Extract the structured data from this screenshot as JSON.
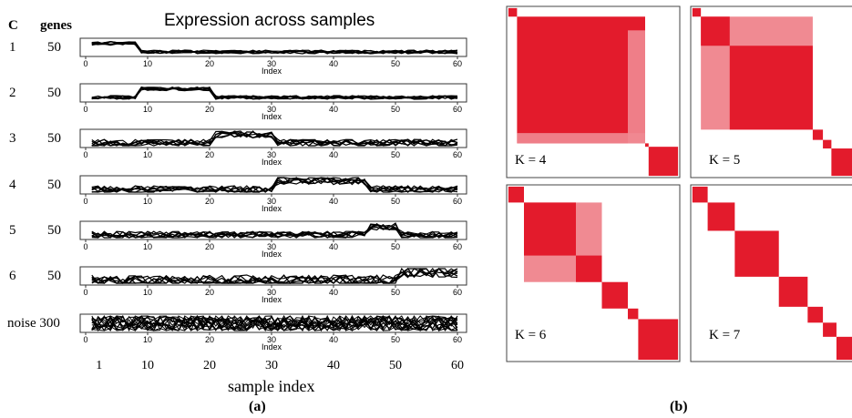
{
  "panel_a": {
    "title": "Expression across samples",
    "header_cluster": "C",
    "header_genes": "genes",
    "index_label": "Index",
    "xaxis_label": "sample index",
    "caption": "(a)",
    "inner_ticks": [
      "0",
      "10",
      "20",
      "30",
      "40",
      "50",
      "60"
    ],
    "bottom_ticks": [
      "1",
      "10",
      "20",
      "30",
      "40",
      "50",
      "60"
    ]
  },
  "panel_b": {
    "caption": "(b)"
  },
  "colors": {
    "block": "#e31b2c",
    "block_light": "#f08a92",
    "trace": "#000000",
    "frame": "#333333"
  },
  "chart_data": [
    {
      "type": "line",
      "title": "Expression across samples",
      "xlabel": "sample index",
      "x_range": [
        1,
        60
      ],
      "rows": [
        {
          "cluster": "1",
          "genes": "50",
          "high_range": [
            1,
            8
          ],
          "noise": "low"
        },
        {
          "cluster": "2",
          "genes": "50",
          "high_range": [
            9,
            20
          ],
          "noise": "low"
        },
        {
          "cluster": "3",
          "genes": "50",
          "high_range": [
            21,
            30
          ],
          "noise": "medium"
        },
        {
          "cluster": "4",
          "genes": "50",
          "high_range": [
            31,
            45
          ],
          "noise": "medium"
        },
        {
          "cluster": "5",
          "genes": "50",
          "high_range": [
            46,
            50
          ],
          "noise": "medium"
        },
        {
          "cluster": "6",
          "genes": "50",
          "high_range": [
            51,
            60
          ],
          "noise": "high"
        },
        {
          "cluster": "noise",
          "genes": "300",
          "high_range": null,
          "noise": "full"
        }
      ]
    },
    {
      "type": "heatmap",
      "matrices": [
        {
          "label": "K = 4",
          "blocks": [
            [
              0,
              1
            ],
            [
              1,
              9
            ],
            [
              9,
              10
            ],
            [
              10,
              11
            ]
          ],
          "merged": [
            [
              8.5,
              9
            ]
          ]
        },
        {
          "label": "K = 5",
          "blocks": [
            [
              0,
              1
            ],
            [
              1,
              2
            ],
            [
              2,
              9
            ],
            [
              9,
              10
            ],
            [
              10,
              11
            ]
          ],
          "merged": [
            [
              1,
              9
            ]
          ]
        },
        {
          "label": "K = 6",
          "blocks": [
            [
              0,
              1
            ],
            [
              1,
              3
            ],
            [
              3,
              4
            ],
            [
              4,
              5
            ],
            [
              5,
              6
            ],
            [
              6,
              7
            ]
          ],
          "merged": [
            [
              1,
              4
            ]
          ]
        },
        {
          "label": "K = 7",
          "blocks": [
            [
              0,
              1
            ],
            [
              1,
              3
            ],
            [
              3,
              4
            ],
            [
              4,
              5
            ],
            [
              5,
              6
            ],
            [
              6,
              7
            ],
            [
              7,
              8
            ]
          ],
          "merged": []
        }
      ]
    }
  ]
}
